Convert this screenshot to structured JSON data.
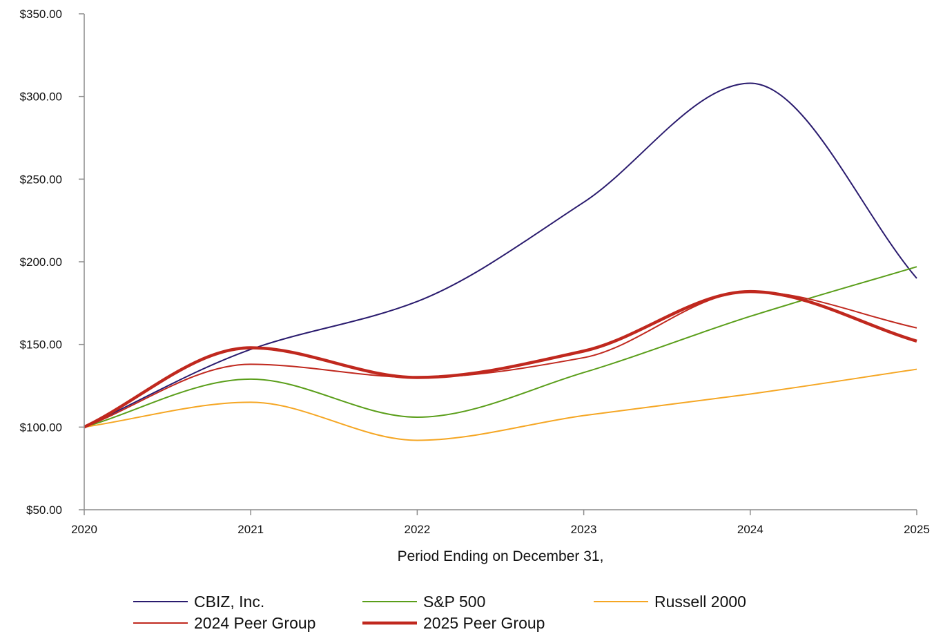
{
  "chart_data": {
    "type": "line",
    "title": "",
    "xlabel": "Period Ending on December 31,",
    "ylabel": "",
    "x": [
      "2020",
      "2021",
      "2022",
      "2023",
      "2024",
      "2025"
    ],
    "ylim": [
      50,
      350
    ],
    "y_ticks": [
      50,
      100,
      150,
      200,
      250,
      300,
      350
    ],
    "y_tick_labels": [
      "$50.00",
      "$100.00",
      "$150.00",
      "$200.00",
      "$250.00",
      "$300.00",
      "$350.00"
    ],
    "grid": false,
    "smooth": true,
    "legend_position": "bottom",
    "series": [
      {
        "name": "CBIZ, Inc.",
        "color": "#2a1b6e",
        "width": 2,
        "values": [
          100,
          147,
          176,
          236,
          308,
          190
        ]
      },
      {
        "name": "S&P 500",
        "color": "#5a9e1a",
        "width": 2,
        "values": [
          100,
          129,
          106,
          133,
          167,
          197
        ]
      },
      {
        "name": "Russell 2000",
        "color": "#f5a623",
        "width": 2,
        "values": [
          100,
          115,
          92,
          107,
          120,
          135
        ]
      },
      {
        "name": "2024 Peer Group",
        "color": "#c0281e",
        "width": 2,
        "values": [
          100,
          138,
          130,
          142,
          182,
          160
        ]
      },
      {
        "name": "2025 Peer Group",
        "color": "#c0281e",
        "width": 4.5,
        "values": [
          100,
          148,
          130,
          146,
          182,
          152
        ]
      }
    ]
  }
}
